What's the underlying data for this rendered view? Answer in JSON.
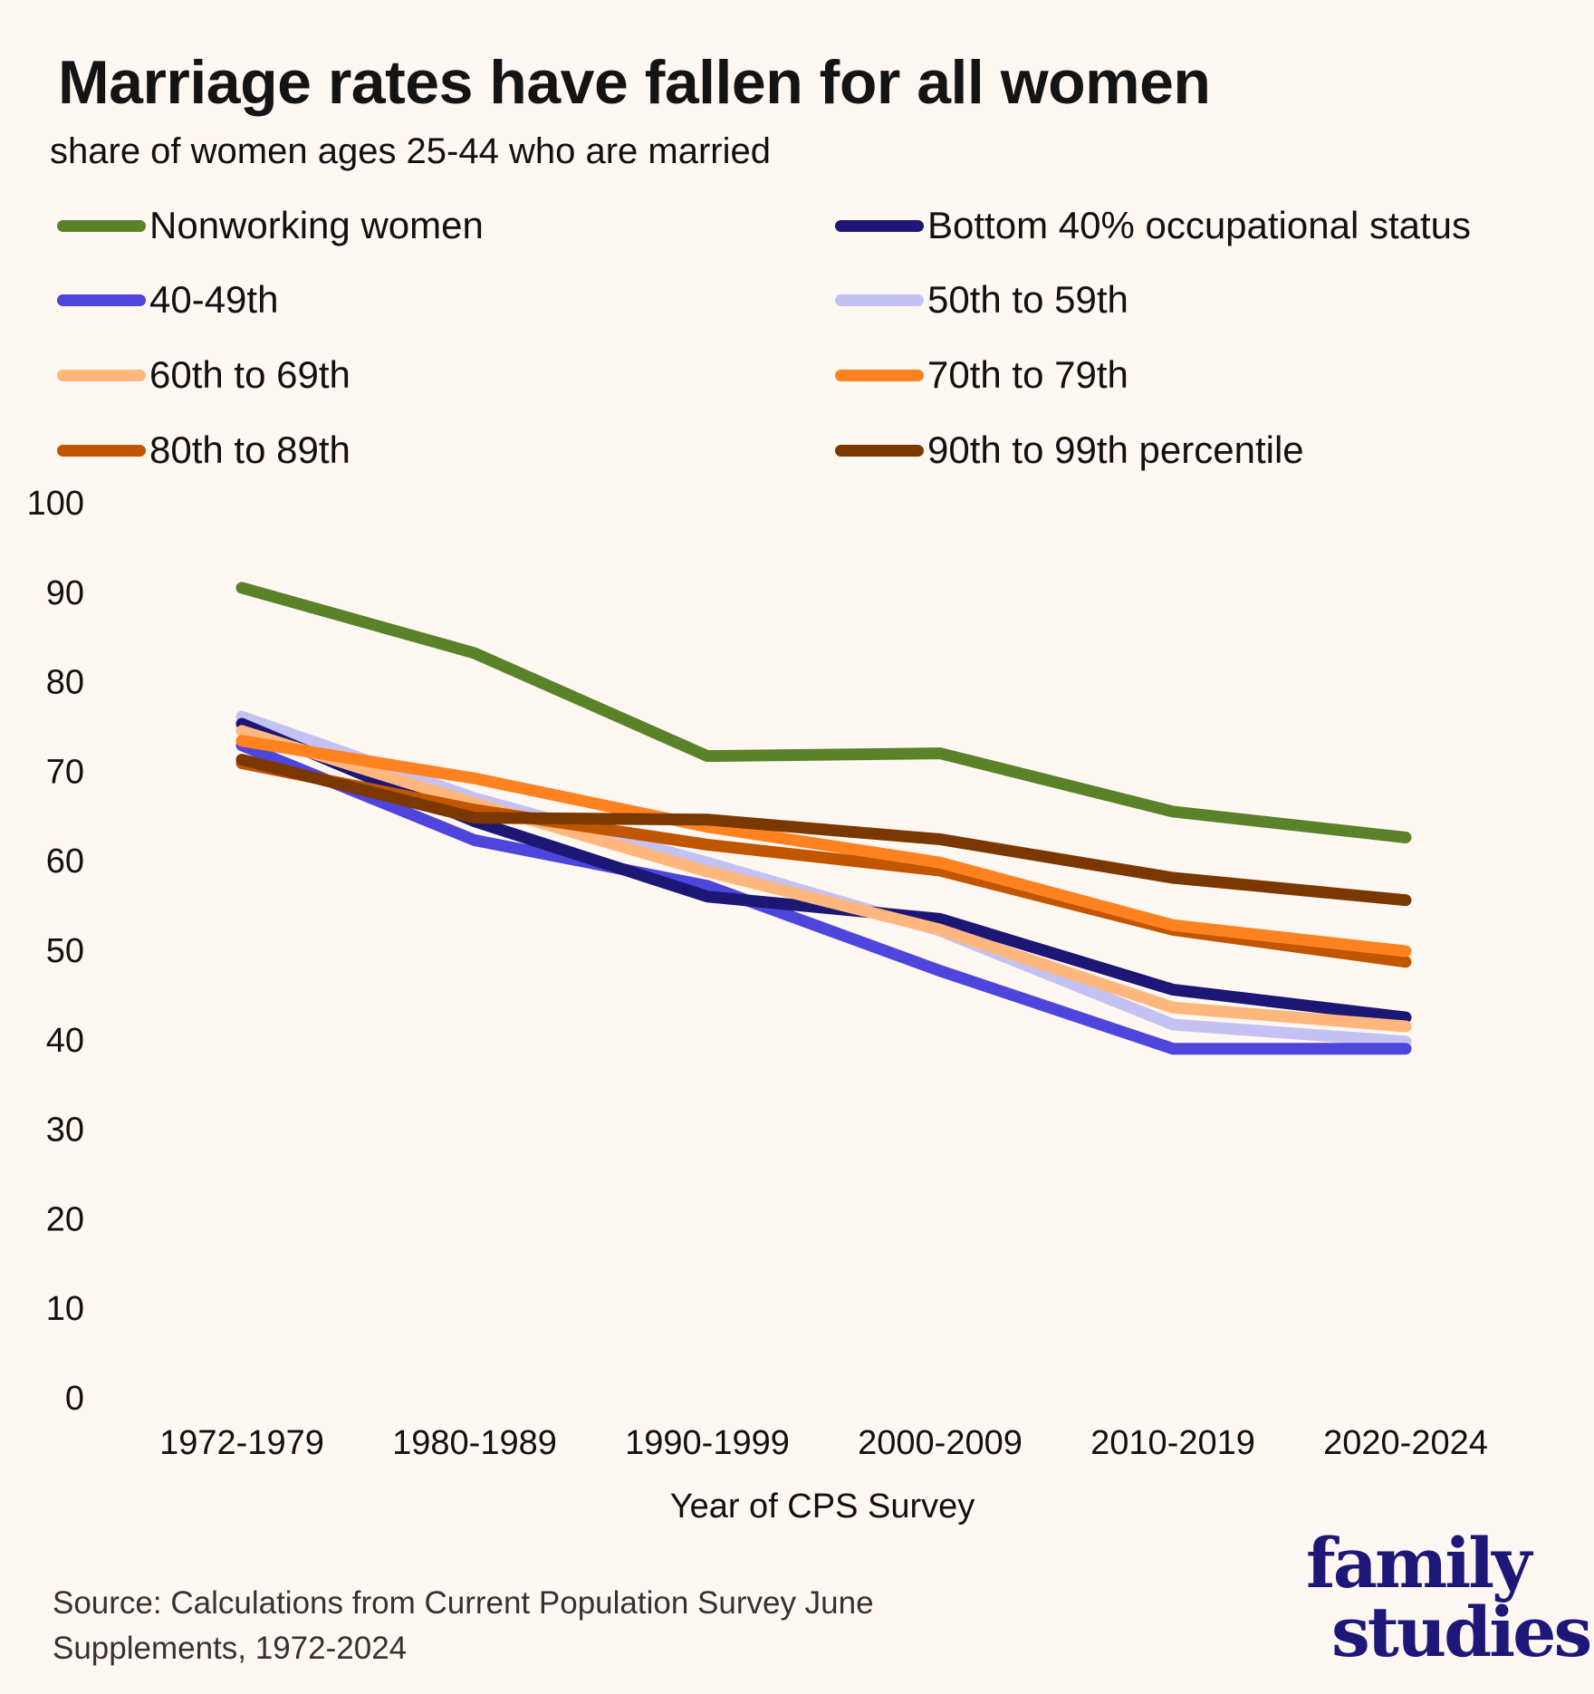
{
  "header": {
    "title": "Marriage rates have fallen for all women",
    "subtitle": "share of women ages 25-44 who are married"
  },
  "legend": [
    {
      "label": "Nonworking women",
      "color": "#5a8228"
    },
    {
      "label": "Bottom 40% occupational status",
      "color": "#1c1675"
    },
    {
      "label": "40-49th",
      "color": "#4e45dc"
    },
    {
      "label": "50th to 59th",
      "color": "#c4c2f2"
    },
    {
      "label": "60th to 69th",
      "color": "#ffb77e"
    },
    {
      "label": "70th to 79th",
      "color": "#ff8220"
    },
    {
      "label": "80th to 89th",
      "color": "#c05600"
    },
    {
      "label": "90th to 99th percentile",
      "color": "#7a3800"
    }
  ],
  "chart_data": {
    "type": "line",
    "title": "Marriage rates have fallen for all women",
    "subtitle": "share of women ages 25-44 who are married",
    "xlabel": "Year of CPS Survey",
    "ylabel": "",
    "categories": [
      "1972-1979",
      "1980-1989",
      "1990-1999",
      "2000-2009",
      "2010-2019",
      "2020-2024"
    ],
    "ylim": [
      0,
      100
    ],
    "yticks": [
      0,
      10,
      20,
      30,
      40,
      50,
      60,
      70,
      80,
      90,
      100
    ],
    "grid": false,
    "legend_position": "top",
    "series": [
      {
        "name": "Nonworking women",
        "color": "#5a8228",
        "values": [
          90.5,
          83.2,
          71.7,
          72.0,
          65.5,
          62.6
        ]
      },
      {
        "name": "Bottom 40% occupational status",
        "color": "#1c1675",
        "values": [
          75.3,
          64.4,
          56.0,
          53.5,
          45.6,
          42.5
        ]
      },
      {
        "name": "40-49th",
        "color": "#4e45dc",
        "values": [
          72.9,
          62.3,
          57.2,
          47.7,
          39.0,
          39.0
        ]
      },
      {
        "name": "50th to 59th",
        "color": "#c4c2f2",
        "values": [
          76.1,
          67.0,
          59.8,
          52.2,
          41.7,
          39.8
        ]
      },
      {
        "name": "60th to 69th",
        "color": "#ffb77e",
        "values": [
          74.5,
          66.4,
          58.8,
          52.3,
          43.6,
          41.5
        ]
      },
      {
        "name": "70th to 79th",
        "color": "#ff8220",
        "values": [
          73.4,
          69.2,
          63.8,
          59.8,
          52.8,
          49.9
        ]
      },
      {
        "name": "80th to 89th",
        "color": "#c05600",
        "values": [
          70.9,
          65.7,
          61.8,
          58.9,
          52.3,
          48.7
        ]
      },
      {
        "name": "90th to 99th percentile",
        "color": "#7a3800",
        "values": [
          71.3,
          64.8,
          64.6,
          62.4,
          58.1,
          55.6
        ]
      }
    ]
  },
  "footer": {
    "source_line1": "Source: Calculations from Current Population Survey June",
    "source_line2": "Supplements, 1972-2024"
  },
  "logo": {
    "line1": "family",
    "line2": "studies",
    "color": "#1d1878"
  }
}
